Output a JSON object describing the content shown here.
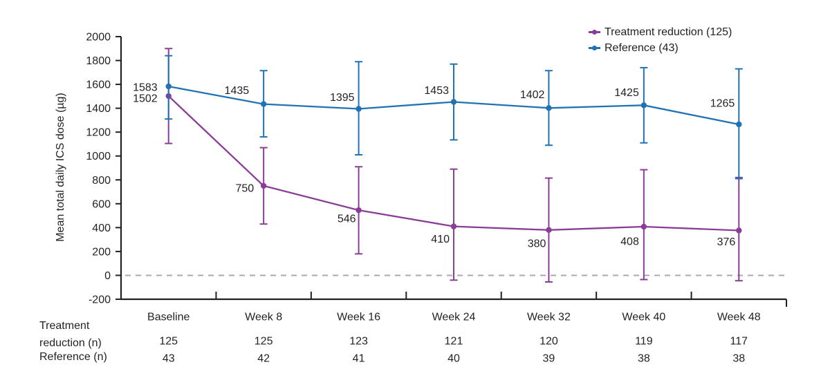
{
  "colors": {
    "treatment": "#8a3d96",
    "reference": "#2072b4",
    "zero_line": "#a6a8ab",
    "axis": "#231f20",
    "text": "#231f20"
  },
  "legend": {
    "items": [
      {
        "label": "Treatment reduction (125)",
        "color_key": "treatment"
      },
      {
        "label": "Reference (43)",
        "color_key": "reference"
      }
    ]
  },
  "chart_data": {
    "type": "line",
    "title": "",
    "xlabel": "",
    "ylabel": "Mean total daily ICS dose (µg)",
    "ylim": [
      -200,
      2000
    ],
    "ytick_step": 200,
    "grid": false,
    "zero_reference_line": true,
    "legend_position": "top-right",
    "categories": [
      "Baseline",
      "Week 8",
      "Week 16",
      "Week 24",
      "Week 32",
      "Week 40",
      "Week 48"
    ],
    "series": [
      {
        "name": "Treatment reduction (125)",
        "color_key": "treatment",
        "values": [
          1502,
          750,
          546,
          410,
          380,
          408,
          376
        ],
        "error_low": [
          1105,
          430,
          180,
          -40,
          -55,
          -35,
          -45
        ],
        "error_high": [
          1900,
          1070,
          910,
          890,
          815,
          885,
          820
        ]
      },
      {
        "name": "Reference (43)",
        "color_key": "reference",
        "values": [
          1583,
          1435,
          1395,
          1453,
          1402,
          1425,
          1265
        ],
        "error_low": [
          1310,
          1160,
          1010,
          1135,
          1090,
          1110,
          810
        ],
        "error_high": [
          1840,
          1715,
          1790,
          1770,
          1715,
          1740,
          1730
        ]
      }
    ],
    "counts_table": {
      "rows": [
        {
          "label": "Treatment reduction (n)",
          "values": [
            "125",
            "125",
            "123",
            "121",
            "120",
            "119",
            "117"
          ]
        },
        {
          "label": "Reference (n)",
          "values": [
            "43",
            "42",
            "41",
            "40",
            "39",
            "38",
            "38"
          ]
        }
      ]
    }
  }
}
